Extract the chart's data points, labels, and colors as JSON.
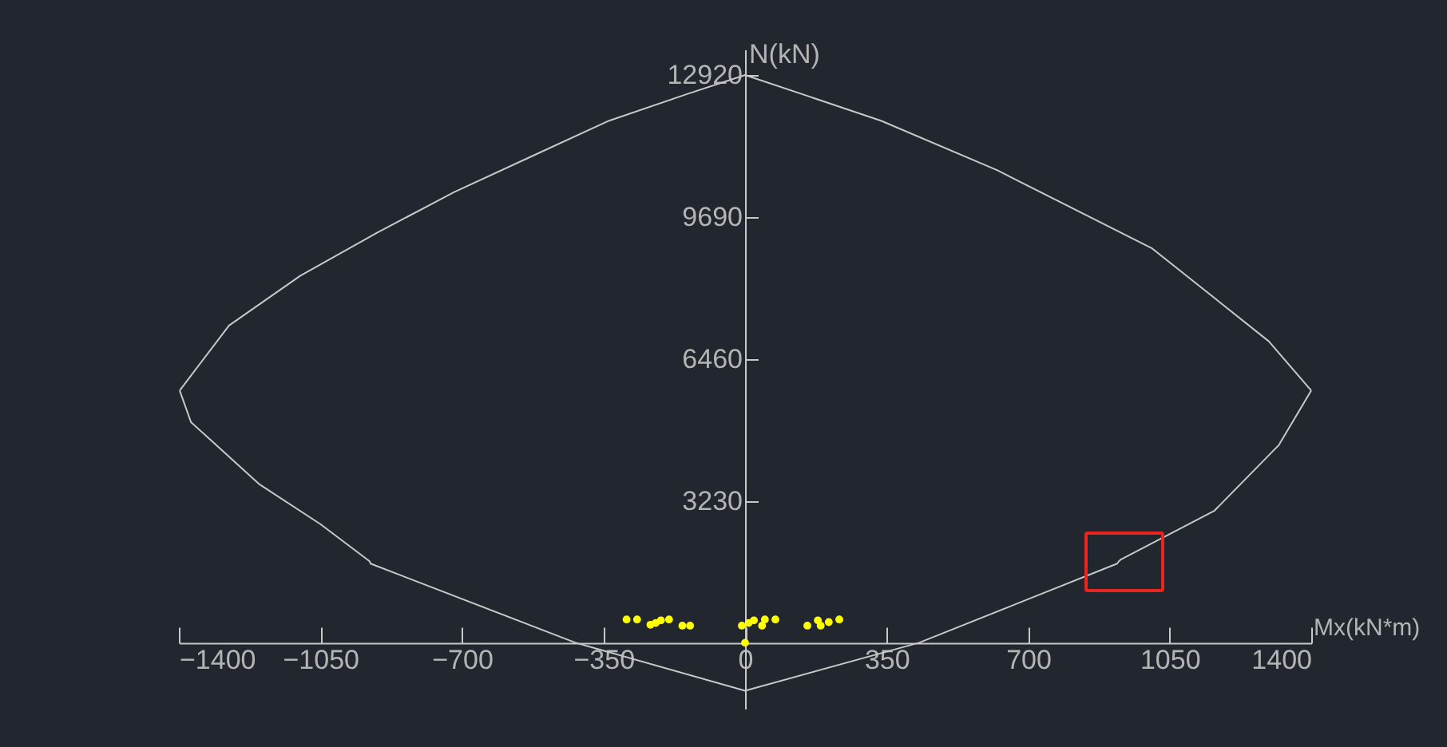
{
  "chart_data": {
    "type": "line",
    "xlabel": "Mx(kN*m)",
    "ylabel": "N(kN)",
    "xlim": [
      -1400,
      1400
    ],
    "ylim": [
      -1500,
      13500
    ],
    "xticks": [
      -1400,
      -1050,
      -700,
      -350,
      0,
      350,
      700,
      1050,
      1400
    ],
    "yticks": [
      3230,
      6460,
      9690,
      12920
    ],
    "grid": false,
    "line_style": "solid",
    "series": [
      {
        "color": "#c8c8c8",
        "x": [
          -1398,
          -1276,
          -1100,
          -910,
          -720,
          -525,
          -336,
          -142,
          0,
          336,
          624,
          1007,
          1295,
          1400
        ],
        "values": [
          5740,
          7220,
          8350,
          9330,
          10250,
          11080,
          11880,
          12490,
          12920,
          11880,
          10750,
          8970,
          6860,
          5740
        ]
      },
      {
        "color": "#c8c8c8",
        "x": [
          -1398,
          -1370,
          -1200,
          -1050,
          -935,
          -928,
          -926,
          -419,
          0,
          430,
          920,
          924,
          930,
          1160,
          1320,
          1400
        ],
        "values": [
          5740,
          5020,
          3600,
          2700,
          1900,
          1850,
          1800,
          0,
          -1090,
          0,
          1800,
          1850,
          1900,
          3000,
          4500,
          5740
        ]
      },
      {
        "type": "scatter",
        "color": "#ffff00",
        "marker": "circle",
        "x": [
          -293,
          -267,
          -234,
          -221,
          -208,
          -188,
          -155,
          -136,
          -8,
          9,
          22,
          42,
          49,
          75,
          154,
          180,
          187,
          207,
          233,
          0
        ],
        "values": [
          530,
          530,
          410,
          450,
          510,
          530,
          390,
          390,
          390,
          450,
          510,
          390,
          530,
          530,
          390,
          510,
          390,
          470,
          530,
          0
        ]
      }
    ]
  }
}
